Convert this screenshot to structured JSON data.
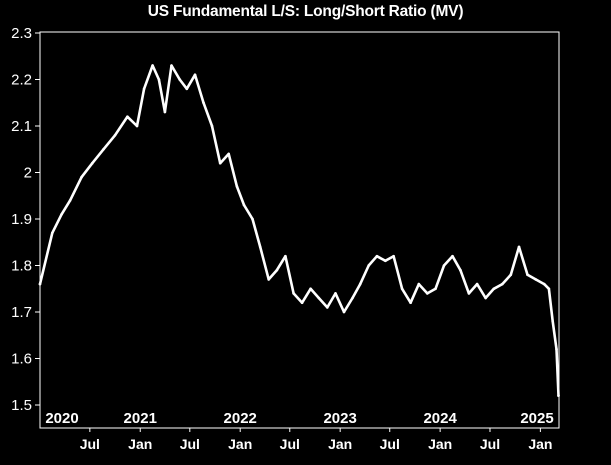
{
  "chart_data": {
    "type": "line",
    "title": "US Fundamental L/S: Long/Short Ratio (MV)",
    "xlabel": "",
    "ylabel": "",
    "ylim": [
      1.5,
      2.3
    ],
    "xlim": [
      "2020-01-01",
      "2025-03-10"
    ],
    "grid": false,
    "legend": "none",
    "line_color": "#ffffff",
    "background_color": "#000000",
    "y_ticks": [
      "2.3",
      "2.2",
      "2.1",
      "2",
      "1.9",
      "1.8",
      "1.7",
      "1.6",
      "1.5"
    ],
    "x_year_labels": [
      {
        "label": "2020",
        "date": "2020-01-01"
      },
      {
        "label": "2021",
        "date": "2021-01-01"
      },
      {
        "label": "2022",
        "date": "2022-01-01"
      },
      {
        "label": "2023",
        "date": "2023-01-01"
      },
      {
        "label": "2024",
        "date": "2024-01-01"
      },
      {
        "label": "2025",
        "date": "2025-01-01"
      }
    ],
    "x_month_labels": [
      {
        "label": "Jul",
        "date": "2020-07-01"
      },
      {
        "label": "Jan",
        "date": "2021-01-01"
      },
      {
        "label": "Jul",
        "date": "2021-07-01"
      },
      {
        "label": "Jan",
        "date": "2022-01-01"
      },
      {
        "label": "Jul",
        "date": "2022-07-01"
      },
      {
        "label": "Jan",
        "date": "2023-01-01"
      },
      {
        "label": "Jul",
        "date": "2023-07-01"
      },
      {
        "label": "Jan",
        "date": "2024-01-01"
      },
      {
        "label": "Jul",
        "date": "2024-07-01"
      },
      {
        "label": "Jan",
        "date": "2025-01-01"
      }
    ],
    "series": [
      {
        "x": [
          "2020-01-01",
          "2020-02-15",
          "2020-03-20",
          "2020-04-20",
          "2020-06-01",
          "2020-07-10",
          "2020-08-20",
          "2020-10-01",
          "2020-11-15",
          "2020-12-20",
          "2021-01-15",
          "2021-02-15",
          "2021-03-10",
          "2021-04-01",
          "2021-04-25",
          "2021-05-25",
          "2021-06-20",
          "2021-07-20",
          "2021-08-20",
          "2021-09-20",
          "2021-10-20",
          "2021-11-20",
          "2021-12-20",
          "2022-01-15",
          "2022-02-15",
          "2022-03-15",
          "2022-04-15",
          "2022-05-15",
          "2022-06-15",
          "2022-07-15",
          "2022-08-15",
          "2022-09-15",
          "2022-10-15",
          "2022-11-15",
          "2022-12-15",
          "2023-01-15",
          "2023-02-15",
          "2023-03-15",
          "2023-04-15",
          "2023-05-15",
          "2023-06-15",
          "2023-07-15",
          "2023-08-15",
          "2023-09-15",
          "2023-10-15",
          "2023-11-15",
          "2023-12-15",
          "2024-01-15",
          "2024-02-15",
          "2024-03-15",
          "2024-04-15",
          "2024-05-15",
          "2024-06-15",
          "2024-07-15",
          "2024-08-15",
          "2024-09-15",
          "2024-10-15",
          "2024-11-15",
          "2024-12-15",
          "2025-01-15",
          "2025-02-01",
          "2025-02-15",
          "2025-03-01",
          "2025-03-08"
        ],
        "y": [
          1.76,
          1.87,
          1.91,
          1.94,
          1.99,
          2.02,
          2.05,
          2.08,
          2.12,
          2.1,
          2.18,
          2.23,
          2.2,
          2.13,
          2.23,
          2.2,
          2.18,
          2.21,
          2.15,
          2.1,
          2.02,
          2.04,
          1.97,
          1.93,
          1.9,
          1.84,
          1.77,
          1.79,
          1.82,
          1.74,
          1.72,
          1.75,
          1.73,
          1.71,
          1.74,
          1.7,
          1.73,
          1.76,
          1.8,
          1.82,
          1.81,
          1.82,
          1.75,
          1.72,
          1.76,
          1.74,
          1.75,
          1.8,
          1.82,
          1.79,
          1.74,
          1.76,
          1.73,
          1.75,
          1.76,
          1.78,
          1.84,
          1.78,
          1.77,
          1.76,
          1.75,
          1.68,
          1.62,
          1.52
        ]
      }
    ]
  }
}
